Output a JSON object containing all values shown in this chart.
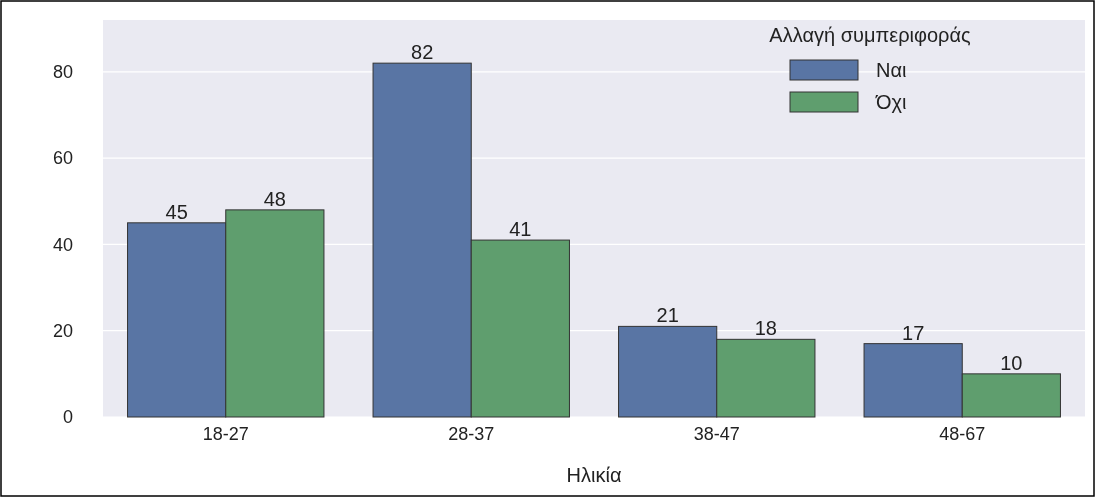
{
  "chart_data": {
    "type": "bar",
    "xlabel": "Ηλικία",
    "legend_title": "Αλλαγή συμπεριφοράς",
    "categories": [
      "18-27",
      "28-37",
      "38-47",
      "48-67"
    ],
    "series": [
      {
        "name": "Ναι",
        "color": "#5975a4",
        "values": [
          45,
          82,
          21,
          17
        ]
      },
      {
        "name": "Όχι",
        "color": "#5f9e6e",
        "values": [
          48,
          41,
          18,
          10
        ]
      }
    ],
    "ylim": [
      0,
      92
    ],
    "yticks": [
      0,
      20,
      40,
      60,
      80
    ],
    "grid": "y",
    "legend": "top right",
    "data_labels": true
  }
}
